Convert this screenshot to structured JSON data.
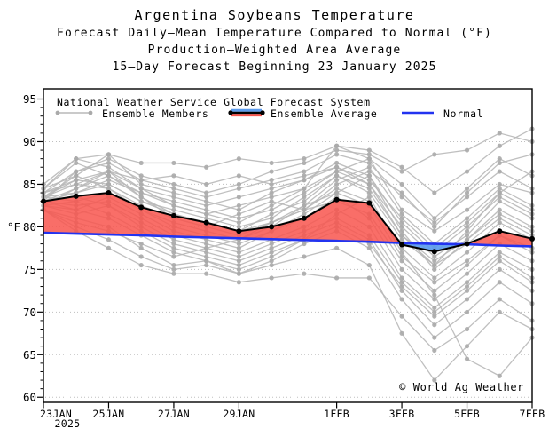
{
  "header": {
    "title": "Argentina Soybeans Temperature",
    "subtitle1": "Forecast Daily–Mean Temperature Compared to Normal (°F)",
    "subtitle2": "Production–Weighted Area Average",
    "subtitle3": "15–Day Forecast Beginning 23 January 2025"
  },
  "legend": {
    "source": "National Weather Service Global Forecast System",
    "members_label": "Ensemble Members",
    "average_label": "Ensemble Average",
    "normal_label": "Normal"
  },
  "watermark": "© World Ag Weather",
  "colors": {
    "member_line": "#b8b8b8",
    "member_dot": "#aaaaaa",
    "average_line": "#000000",
    "normal_line": "#2233f0",
    "above_normal_fill": "#f8554e",
    "below_normal_fill": "#5b9bed",
    "gridline": "#bfbfbf",
    "frame": "#000000"
  },
  "chart_data": {
    "type": "line",
    "title": "Argentina Soybeans Temperature",
    "ylabel": "°F",
    "ylim": [
      59.4,
      96.2
    ],
    "yticks": [
      60,
      65,
      70,
      75,
      80,
      85,
      90,
      95
    ],
    "x_days_total": 15,
    "xtick_labels": [
      "23JAN",
      "25JAN",
      "27JAN",
      "29JAN",
      "1FEB",
      "3FEB",
      "5FEB",
      "7FEB"
    ],
    "xtick_days": [
      0,
      2,
      4,
      6,
      9,
      11,
      13,
      15
    ],
    "year_label": "2025",
    "grid": "dotted-horizontal",
    "legend_position": "top-left-inside",
    "average": [
      83.0,
      83.6,
      84.0,
      82.3,
      81.3,
      80.5,
      79.5,
      80.0,
      81.0,
      83.2,
      82.8,
      77.9,
      77.1,
      78.0,
      79.5,
      78.6
    ],
    "normal": [
      79.3,
      79.2,
      79.1,
      79.0,
      78.85,
      78.75,
      78.65,
      78.55,
      78.45,
      78.35,
      78.25,
      78.1,
      78.0,
      77.95,
      77.8,
      77.7
    ],
    "members": [
      [
        83.5,
        86.0,
        88.5,
        85.0,
        84.0,
        83.0,
        82.0,
        84.0,
        85.5,
        87.0,
        85.0,
        80.0,
        76.5,
        79.0,
        83.0,
        81.0
      ],
      [
        84.5,
        88.0,
        87.0,
        84.5,
        82.5,
        81.5,
        80.5,
        82.5,
        84.5,
        89.5,
        88.0,
        82.0,
        79.5,
        82.0,
        85.0,
        84.0
      ],
      [
        83.0,
        84.5,
        86.5,
        83.5,
        81.0,
        80.0,
        81.5,
        83.0,
        82.0,
        85.0,
        86.5,
        84.0,
        80.0,
        84.0,
        87.5,
        88.5
      ],
      [
        82.5,
        83.0,
        84.0,
        82.0,
        80.5,
        79.5,
        78.5,
        80.0,
        82.5,
        84.0,
        82.5,
        76.5,
        73.5,
        76.0,
        79.0,
        77.5
      ],
      [
        83.0,
        82.0,
        83.5,
        81.5,
        79.5,
        78.5,
        77.5,
        79.5,
        81.0,
        83.5,
        81.0,
        75.0,
        71.5,
        74.5,
        78.0,
        76.0
      ],
      [
        84.0,
        85.5,
        85.0,
        83.0,
        82.0,
        81.0,
        80.0,
        81.0,
        83.5,
        86.0,
        84.5,
        79.0,
        76.0,
        78.5,
        81.5,
        79.5
      ],
      [
        82.0,
        80.5,
        79.5,
        78.0,
        76.5,
        77.5,
        76.5,
        78.0,
        79.5,
        81.0,
        79.0,
        73.5,
        70.0,
        73.0,
        76.5,
        74.0
      ],
      [
        83.5,
        84.0,
        85.5,
        84.0,
        83.0,
        82.0,
        81.0,
        82.0,
        84.0,
        86.5,
        88.0,
        85.0,
        81.0,
        84.5,
        88.0,
        86.0
      ],
      [
        82.5,
        81.5,
        82.5,
        80.5,
        78.5,
        77.5,
        78.5,
        80.5,
        82.0,
        84.5,
        83.0,
        77.5,
        74.0,
        77.0,
        80.5,
        78.5
      ],
      [
        84.5,
        87.5,
        86.0,
        83.5,
        81.5,
        80.5,
        79.5,
        80.5,
        82.0,
        83.0,
        81.5,
        76.0,
        72.5,
        75.5,
        79.0,
        77.0
      ],
      [
        83.0,
        83.5,
        82.5,
        80.0,
        78.0,
        77.0,
        76.0,
        77.5,
        79.0,
        80.5,
        78.5,
        72.5,
        68.5,
        71.5,
        75.0,
        72.5
      ],
      [
        82.0,
        81.0,
        80.0,
        77.5,
        75.5,
        76.0,
        74.5,
        76.0,
        78.0,
        79.5,
        77.5,
        71.5,
        67.0,
        70.0,
        73.5,
        71.0
      ],
      [
        85.0,
        88.0,
        88.5,
        87.5,
        87.5,
        87.0,
        88.0,
        87.5,
        88.0,
        89.5,
        89.0,
        87.0,
        84.0,
        86.5,
        89.5,
        91.5
      ],
      [
        83.5,
        85.0,
        84.5,
        82.5,
        81.0,
        80.0,
        79.0,
        80.5,
        82.5,
        85.5,
        87.0,
        81.5,
        78.0,
        81.0,
        84.5,
        82.5
      ],
      [
        82.5,
        82.0,
        81.0,
        79.0,
        77.0,
        76.0,
        75.0,
        76.5,
        78.5,
        80.0,
        78.0,
        73.0,
        69.5,
        72.5,
        76.0,
        73.5
      ],
      [
        84.0,
        86.5,
        87.5,
        85.5,
        84.5,
        83.5,
        84.5,
        85.5,
        86.5,
        88.5,
        87.5,
        83.5,
        80.5,
        83.5,
        86.5,
        84.5
      ],
      [
        83.0,
        84.0,
        85.0,
        83.0,
        81.5,
        80.5,
        79.5,
        81.5,
        83.0,
        86.0,
        84.0,
        78.5,
        75.5,
        78.0,
        81.0,
        79.0
      ],
      [
        82.0,
        79.5,
        77.5,
        75.5,
        74.5,
        74.5,
        73.5,
        74.0,
        74.5,
        74.0,
        74.0,
        69.5,
        65.5,
        68.0,
        71.5,
        69.0
      ],
      [
        83.5,
        85.5,
        86.5,
        84.5,
        83.5,
        82.5,
        83.5,
        84.5,
        85.5,
        87.5,
        86.0,
        80.5,
        77.0,
        80.0,
        83.5,
        81.5
      ],
      [
        84.5,
        86.0,
        84.5,
        82.0,
        80.0,
        79.0,
        78.0,
        79.5,
        81.5,
        84.0,
        86.0,
        79.5,
        75.0,
        78.5,
        82.0,
        80.0
      ],
      [
        83.0,
        82.5,
        83.0,
        81.0,
        79.0,
        78.0,
        77.0,
        78.5,
        80.0,
        82.0,
        80.0,
        74.0,
        70.5,
        73.5,
        77.0,
        75.0
      ],
      [
        82.5,
        84.5,
        86.0,
        84.0,
        82.5,
        81.5,
        82.5,
        83.5,
        84.5,
        86.5,
        85.0,
        79.0,
        75.5,
        79.5,
        84.0,
        86.5
      ],
      [
        83.5,
        83.0,
        81.5,
        79.5,
        77.5,
        76.5,
        75.5,
        77.0,
        78.5,
        81.5,
        83.5,
        77.0,
        72.0,
        64.5,
        62.5,
        67.0
      ],
      [
        84.0,
        85.0,
        86.5,
        85.5,
        86.0,
        85.0,
        86.0,
        85.0,
        86.0,
        87.0,
        85.5,
        81.0,
        77.5,
        80.5,
        84.0,
        82.0
      ],
      [
        82.0,
        80.0,
        78.5,
        76.5,
        75.0,
        75.5,
        74.5,
        75.5,
        76.5,
        77.5,
        75.5,
        67.5,
        62.0,
        66.0,
        70.0,
        68.0
      ],
      [
        83.0,
        86.5,
        88.0,
        86.0,
        85.0,
        84.0,
        85.0,
        86.5,
        87.5,
        89.0,
        88.5,
        86.5,
        88.5,
        89.0,
        91.0,
        90.0
      ]
    ]
  }
}
